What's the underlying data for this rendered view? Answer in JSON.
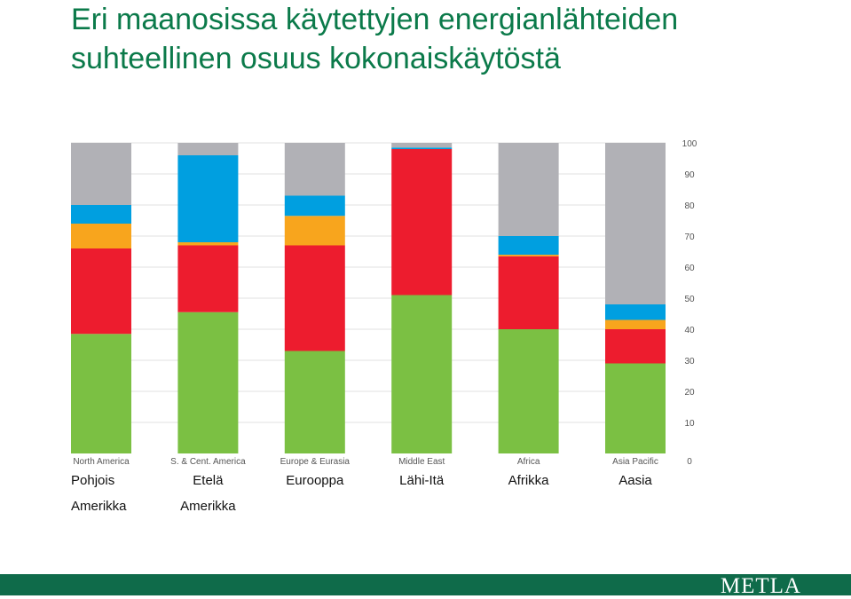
{
  "header": {
    "title_line1": "Eri maanosissa käytettyjen energianlähteiden",
    "title_line2": "suhteellinen osuus kokonaiskäytöstä"
  },
  "footer": {
    "logo_text": "METLA"
  },
  "colors": {
    "background": "#ffffff",
    "title": "#0b7a4a",
    "footer_bar": "#0f6b4a",
    "gridline": "#e2e2e2"
  },
  "finnish_labels": [
    [
      "Pohjois",
      "Amerikka"
    ],
    [
      "Etelä",
      "Amerikka"
    ],
    [
      "Eurooppa"
    ],
    [
      "Lähi-Itä"
    ],
    [
      "Afrikka"
    ],
    [
      "Aasia"
    ]
  ],
  "chart_data": {
    "type": "bar",
    "stacked": true,
    "title": "",
    "xlabel": "",
    "ylabel": "",
    "ylim": [
      0,
      100
    ],
    "y_ticks": [
      0,
      10,
      20,
      30,
      40,
      50,
      60,
      70,
      80,
      90,
      100
    ],
    "y_axis_side": "right",
    "grid": true,
    "legend": "none",
    "categories": [
      "North America",
      "S. & Cent. America",
      "Europe & Eurasia",
      "Middle East",
      "Africa",
      "Asia Pacific"
    ],
    "series": [
      {
        "color": "#7bc043",
        "values": [
          38.5,
          45.5,
          33,
          51,
          40,
          29
        ]
      },
      {
        "color": "#ed1c2e",
        "values": [
          27.5,
          21.5,
          34,
          47,
          23.5,
          11
        ]
      },
      {
        "color": "#f8a51d",
        "values": [
          8,
          1,
          9.5,
          0,
          0.5,
          3
        ]
      },
      {
        "color": "#009fe0",
        "values": [
          6,
          28,
          6.5,
          0.5,
          6,
          5
        ]
      },
      {
        "color": "#b1b1b6",
        "values": [
          20,
          4,
          17,
          1.5,
          30,
          52
        ]
      }
    ]
  }
}
